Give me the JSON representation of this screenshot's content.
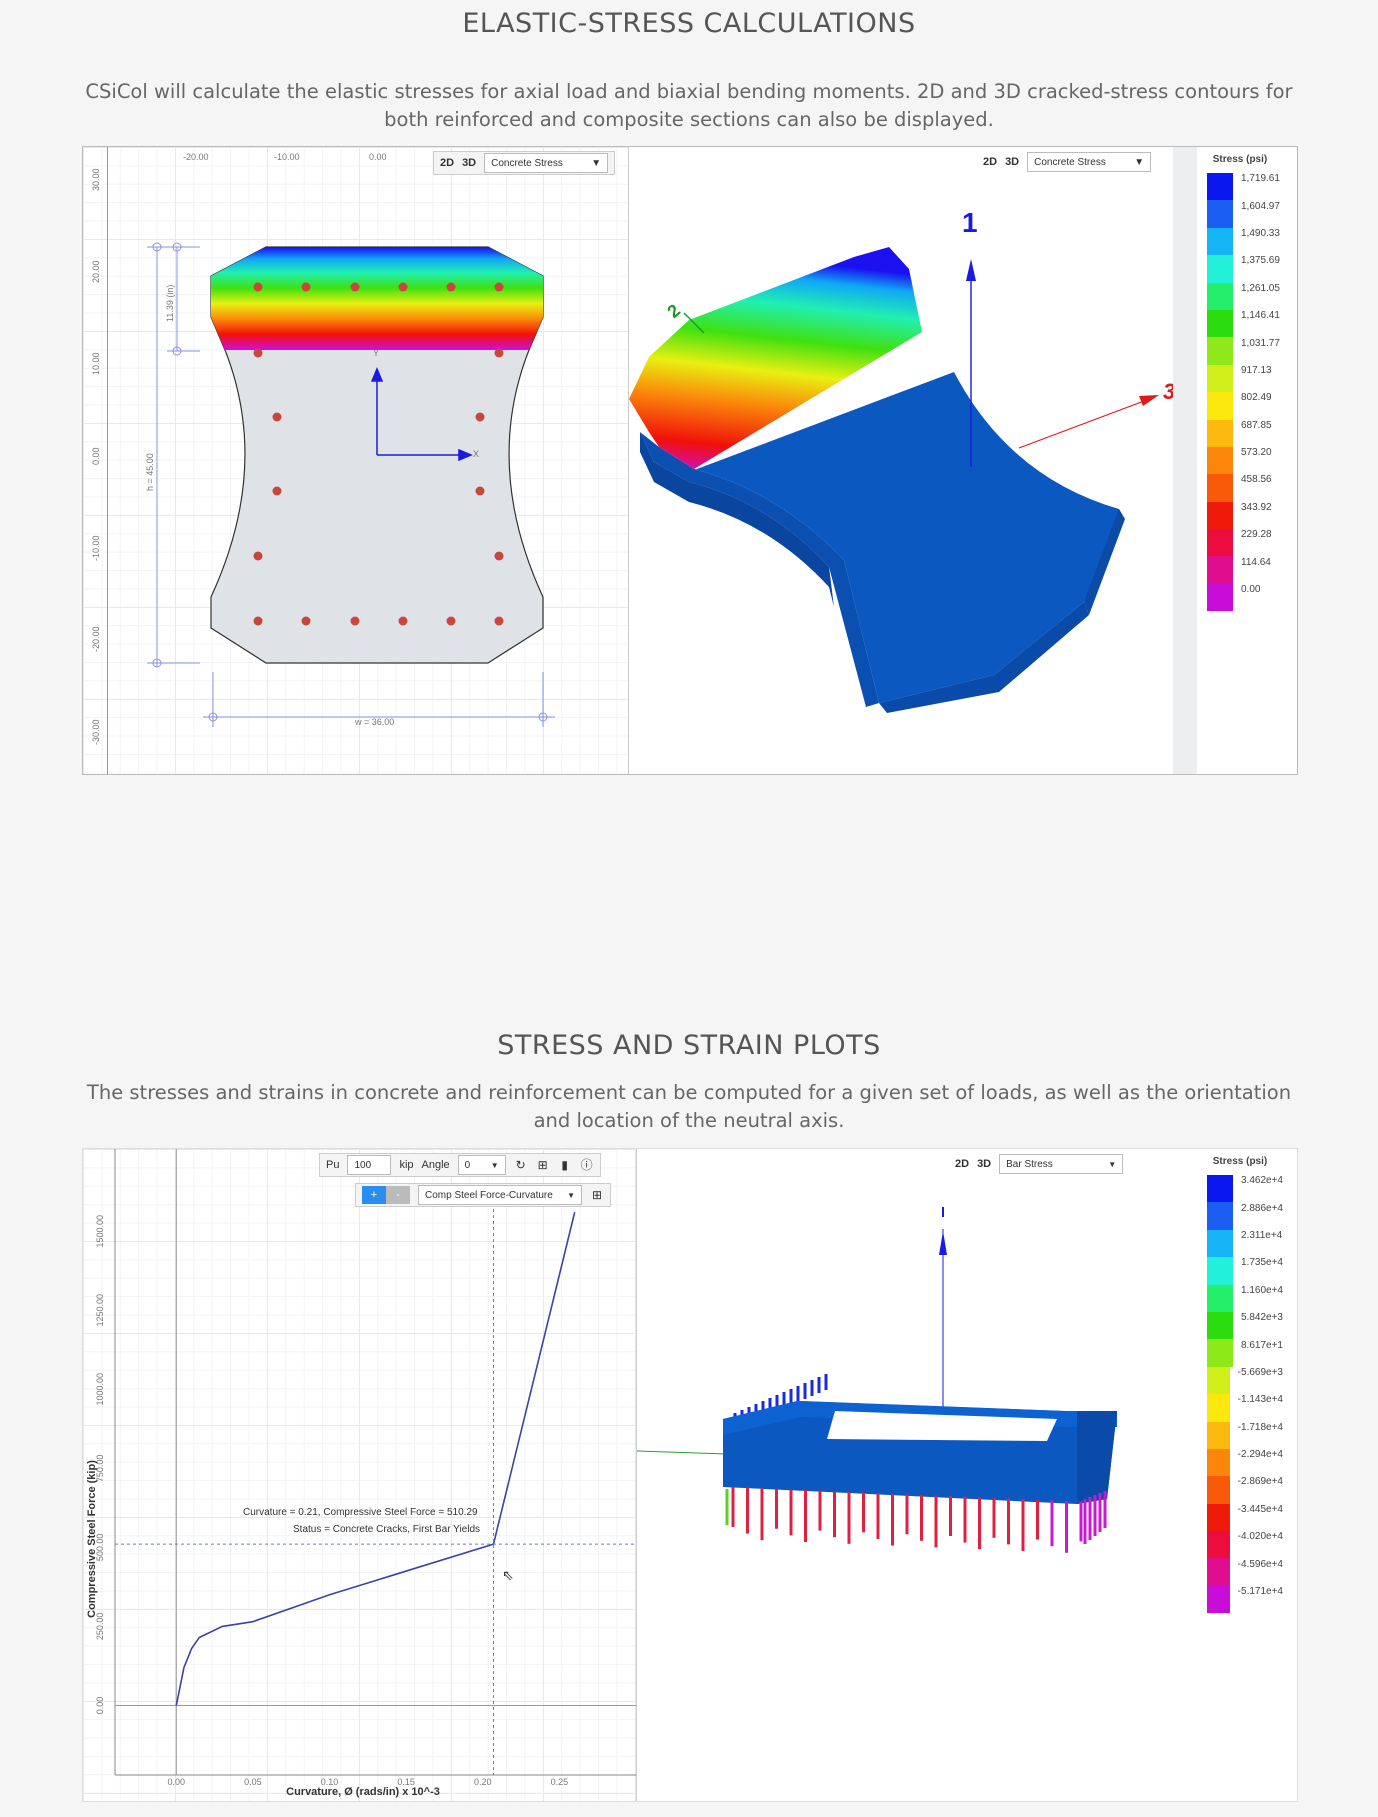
{
  "section1": {
    "title": "ELASTIC-STRESS CALCULATIONS",
    "description": "CSiCol will calculate the elastic stresses for axial load and biaxial bending moments. 2D and 3D cracked-stress contours for both reinforced and composite sections can also be displayed.",
    "left_view": {
      "toolbar": {
        "btn_2d": "2D",
        "btn_3d": "3D",
        "dropdown": "Concrete Stress"
      },
      "x_ticks": [
        "-20.00",
        "-10.00",
        "0.00"
      ],
      "y_ticks": [
        "30.00",
        "20.00",
        "10.00",
        "0.00",
        "-10.00",
        "-20.00",
        "-30.00"
      ],
      "dim_height": "h = 45.00",
      "dim_offset": "11.39 (in)",
      "dim_width": "w = 36.00",
      "axis_x": "X",
      "axis_y": "Y"
    },
    "right_view": {
      "toolbar": {
        "btn_2d": "2D",
        "btn_3d": "3D",
        "dropdown": "Concrete Stress"
      },
      "axis_1": "1",
      "axis_2": "2",
      "axis_3": "3"
    },
    "legend": {
      "title": "Stress (psi)",
      "entries": [
        {
          "label": "1,719.61",
          "color": "#0a17f0"
        },
        {
          "label": "1,604.97",
          "color": "#1a5ef2"
        },
        {
          "label": "1,490.33",
          "color": "#14b4f5"
        },
        {
          "label": "1,375.69",
          "color": "#22f0d8"
        },
        {
          "label": "1,261.05",
          "color": "#25ee6a"
        },
        {
          "label": "1,146.41",
          "color": "#2bdc0e"
        },
        {
          "label": "1,031.77",
          "color": "#8ee81a"
        },
        {
          "label": "917.13",
          "color": "#d0ef1a"
        },
        {
          "label": "802.49",
          "color": "#fbe80d"
        },
        {
          "label": "687.85",
          "color": "#fbb80d"
        },
        {
          "label": "573.20",
          "color": "#fb860a"
        },
        {
          "label": "458.56",
          "color": "#f85a0a"
        },
        {
          "label": "343.92",
          "color": "#f01a0a"
        },
        {
          "label": "229.28",
          "color": "#ec0d3e"
        },
        {
          "label": "114.64",
          "color": "#e00d8e"
        },
        {
          "label": "0.00",
          "color": "#c80dd8"
        }
      ]
    }
  },
  "section2": {
    "title": "STRESS AND STRAIN PLOTS",
    "description": "The stresses and strains in concrete and reinforcement can be computed for a given set of loads, as well as the orientation and location of the neutral axis.",
    "left_view": {
      "toolbar": {
        "pu_label": "Pu",
        "pu_value": "100",
        "pu_unit": "kip",
        "angle_label": "Angle",
        "angle_value": "0",
        "plus": "+",
        "minus": "-",
        "plot_dropdown": "Comp Steel Force-Curvature"
      },
      "annotation_line1": "Curvature = 0.21, Compressive Steel Force = 510.29",
      "annotation_line2": "Status = Concrete Cracks, First Bar Yields"
    },
    "right_view": {
      "toolbar": {
        "btn_2d": "2D",
        "btn_3d": "3D",
        "dropdown": "Bar Stress"
      }
    },
    "legend": {
      "title": "Stress (psi)",
      "entries": [
        {
          "label": "3.462e+4",
          "color": "#0a17f0"
        },
        {
          "label": "2.886e+4",
          "color": "#1a5ef2"
        },
        {
          "label": "2.311e+4",
          "color": "#14b4f5"
        },
        {
          "label": "1.735e+4",
          "color": "#22f0d8"
        },
        {
          "label": "1.160e+4",
          "color": "#25ee6a"
        },
        {
          "label": "5.842e+3",
          "color": "#2bdc0e"
        },
        {
          "label": "8.617e+1",
          "color": "#8ee81a"
        },
        {
          "label": "-5.669e+3",
          "color": "#d0ef1a"
        },
        {
          "label": "-1.143e+4",
          "color": "#fbe80d"
        },
        {
          "label": "-1.718e+4",
          "color": "#fbb80d"
        },
        {
          "label": "-2.294e+4",
          "color": "#fb860a"
        },
        {
          "label": "-2.869e+4",
          "color": "#f85a0a"
        },
        {
          "label": "-3.445e+4",
          "color": "#f01a0a"
        },
        {
          "label": "-4.020e+4",
          "color": "#ec0d3e"
        },
        {
          "label": "-4.596e+4",
          "color": "#e00d8e"
        },
        {
          "label": "-5.171e+4",
          "color": "#c80dd8"
        }
      ]
    }
  },
  "chart_data": {
    "type": "line",
    "title": "",
    "xlabel": "Curvature, Ø (rads/in) x 10^-3",
    "ylabel": "Compressive Steel Force (kip)",
    "x_ticks": [
      "0.00",
      "0.05",
      "0.10",
      "0.15",
      "0.20",
      "0.25"
    ],
    "y_ticks": [
      "0.00",
      "250.00",
      "500.00",
      "750.00",
      "1000.00",
      "1250.00",
      "1500.00"
    ],
    "xlim": [
      -0.04,
      0.3
    ],
    "ylim": [
      -220,
      1760
    ],
    "series": [
      {
        "x": [
          0.0,
          0.005,
          0.01,
          0.015,
          0.03,
          0.05,
          0.1,
          0.15,
          0.207,
          0.26
        ],
        "y": [
          0,
          120,
          180,
          215,
          250,
          265,
          350,
          425,
          510.29,
          1560
        ]
      }
    ],
    "marker": {
      "x": 0.207,
      "y": 510.29
    }
  }
}
